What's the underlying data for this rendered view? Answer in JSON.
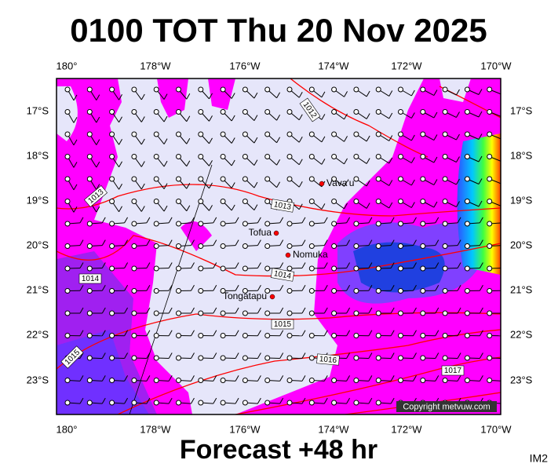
{
  "header": {
    "title": "0100 TOT Thu 20 Nov 2025"
  },
  "map": {
    "lon_labels": [
      "180°",
      "178°W",
      "176°W",
      "174°W",
      "172°W",
      "170°W"
    ],
    "lat_labels": [
      "17°S",
      "18°S",
      "19°S",
      "20°S",
      "21°S",
      "22°S",
      "23°S"
    ],
    "places": [
      "Vava'u",
      "Tofua",
      "Nomuka",
      "Tongatapu"
    ],
    "isobar_labels": [
      "1012",
      "1013",
      "1013",
      "1014",
      "1014",
      "1015",
      "1015",
      "1016",
      "1017"
    ],
    "copyright": "Copyright metvuw.com"
  },
  "footer": {
    "forecast": "Forecast +48 hr",
    "code": "IM2"
  }
}
